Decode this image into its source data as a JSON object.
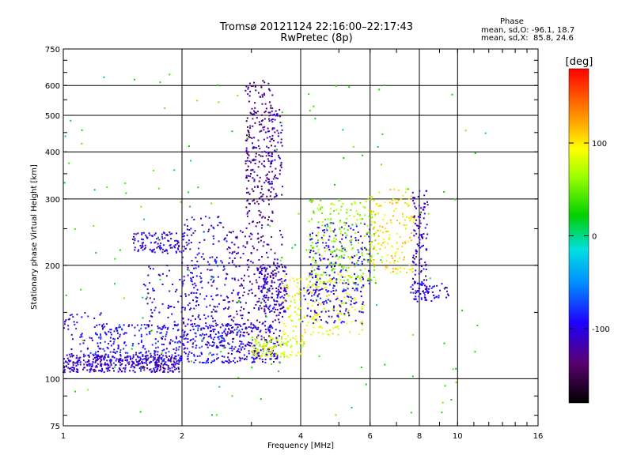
{
  "chart_data": {
    "type": "scatter",
    "title": "Tromsø 20121124 22:16:00–22:17:43",
    "subtitle": "RwPretec (8p)",
    "xlabel": "Frequency [MHz]",
    "ylabel": "Stationary phase Virtual Height [km]",
    "xscale": "log",
    "yscale": "log",
    "xlim": [
      1,
      16
    ],
    "ylim": [
      75,
      750
    ],
    "xticks": [
      1,
      2,
      4,
      6,
      8,
      10,
      16
    ],
    "xtick_labels": [
      "1",
      "2",
      "4",
      "6",
      "8",
      "10",
      "16"
    ],
    "yticks": [
      75,
      100,
      200,
      300,
      400,
      500,
      600,
      750
    ],
    "ytick_labels": [
      "75",
      "100",
      "200",
      "300",
      "400",
      "500",
      "600",
      "750"
    ],
    "grid": true,
    "colorbar": {
      "label": "[deg]",
      "range": [
        -180,
        180
      ],
      "ticks": [
        -100,
        0,
        100
      ],
      "tick_labels": [
        "-100",
        "0",
        "100"
      ]
    },
    "stats": {
      "heading": "Phase",
      "line_o": "mean, sd,O: -96.1, 18.7",
      "line_x": "mean, sd,X:  85.8, 24.6"
    },
    "clusters": [
      {
        "f0": 1.0,
        "f1": 2.0,
        "h0": 104,
        "h1": 116,
        "phase": -110,
        "count": 400
      },
      {
        "f0": 1.0,
        "f1": 1.3,
        "h0": 115,
        "h1": 150,
        "phase": -100,
        "count": 60
      },
      {
        "f0": 1.2,
        "f1": 3.5,
        "h0": 110,
        "h1": 140,
        "phase": -95,
        "count": 500
      },
      {
        "f0": 1.5,
        "f1": 2.1,
        "h0": 215,
        "h1": 245,
        "phase": -105,
        "count": 120
      },
      {
        "f0": 1.6,
        "f1": 2.2,
        "h0": 140,
        "h1": 200,
        "phase": -110,
        "count": 80
      },
      {
        "f0": 2.0,
        "f1": 2.6,
        "h0": 120,
        "h1": 270,
        "phase": -100,
        "count": 200
      },
      {
        "f0": 2.6,
        "f1": 3.6,
        "h0": 110,
        "h1": 250,
        "phase": -120,
        "count": 300
      },
      {
        "f0": 2.9,
        "f1": 3.4,
        "h0": 250,
        "h1": 620,
        "phase": -130,
        "count": 250
      },
      {
        "f0": 3.3,
        "f1": 3.6,
        "h0": 300,
        "h1": 520,
        "phase": -115,
        "count": 80
      },
      {
        "f0": 3.1,
        "f1": 3.7,
        "h0": 150,
        "h1": 200,
        "phase": -110,
        "count": 150
      },
      {
        "f0": 3.0,
        "f1": 4.1,
        "h0": 114,
        "h1": 130,
        "phase": 80,
        "count": 120
      },
      {
        "f0": 3.6,
        "f1": 5.8,
        "h0": 130,
        "h1": 190,
        "phase": 90,
        "count": 200
      },
      {
        "f0": 4.0,
        "f1": 5.8,
        "h0": 140,
        "h1": 180,
        "phase": -100,
        "count": 120
      },
      {
        "f0": 4.2,
        "f1": 6.2,
        "h0": 180,
        "h1": 300,
        "phase": 60,
        "count": 250
      },
      {
        "f0": 4.2,
        "f1": 6.0,
        "h0": 170,
        "h1": 260,
        "phase": -100,
        "count": 150
      },
      {
        "f0": 6.0,
        "f1": 7.8,
        "h0": 190,
        "h1": 320,
        "phase": 100,
        "count": 150
      },
      {
        "f0": 7.7,
        "f1": 8.4,
        "h0": 160,
        "h1": 320,
        "phase": -110,
        "count": 120
      },
      {
        "f0": 7.6,
        "f1": 9.5,
        "h0": 160,
        "h1": 180,
        "phase": -100,
        "count": 60
      },
      {
        "f0": 1.0,
        "f1": 12.0,
        "h0": 80,
        "h1": 650,
        "phase": 30,
        "count": 150
      }
    ]
  }
}
